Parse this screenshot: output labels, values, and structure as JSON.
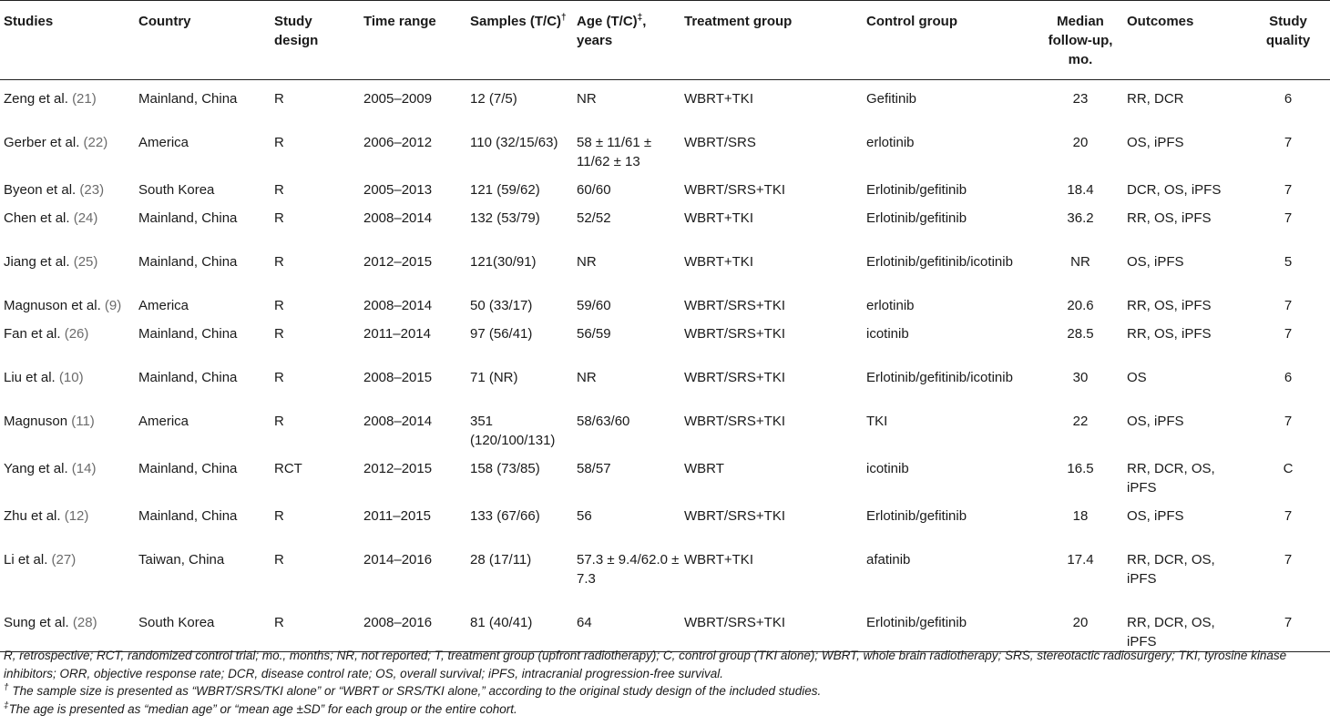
{
  "table": {
    "headers": {
      "studies": "Studies",
      "country": "Country",
      "design": "Study design",
      "time": "Time range",
      "samples": "Samples (T/C)",
      "samples_mark": "†",
      "age": "Age (T/C)",
      "age_mark": "‡",
      "age_unit": ", years",
      "treatment": "Treatment group",
      "control": "Control group",
      "followup": "Median follow-up, mo.",
      "outcomes": "Outcomes",
      "quality": "Study quality"
    },
    "rows": [
      {
        "author": "Zeng et al.",
        "ref": "(21)",
        "country": "Mainland, China",
        "design": "R",
        "time": "2005–2009",
        "samples": "12 (7/5)",
        "age": "NR",
        "treatment": "WBRT+TKI",
        "control": "Gefitinib",
        "followup": "23",
        "outcomes": "RR, DCR",
        "quality": "6"
      },
      {
        "author": "Gerber et al.",
        "ref": "(22)",
        "country": "America",
        "design": "R",
        "time": "2006–2012",
        "samples": "110 (32/15/63)",
        "age": "58 ± 11/61 ± 11/62 ± 13",
        "treatment": "WBRT/SRS",
        "control": "erlotinib",
        "followup": "20",
        "outcomes": "OS, iPFS",
        "quality": "7"
      },
      {
        "author": "Byeon et al.",
        "ref": "(23)",
        "country": "South Korea",
        "design": "R",
        "time": "2005–2013",
        "samples": "121 (59/62)",
        "age": "60/60",
        "treatment": "WBRT/SRS+TKI",
        "control": "Erlotinib/gefitinib",
        "followup": "18.4",
        "outcomes": "DCR, OS, iPFS",
        "quality": "7"
      },
      {
        "author": "Chen et al.",
        "ref": "(24)",
        "country": "Mainland, China",
        "design": "R",
        "time": "2008–2014",
        "samples": "132 (53/79)",
        "age": "52/52",
        "treatment": "WBRT+TKI",
        "control": "Erlotinib/gefitinib",
        "followup": "36.2",
        "outcomes": "RR, OS, iPFS",
        "quality": "7"
      },
      {
        "author": "Jiang et al.",
        "ref": "(25)",
        "country": "Mainland, China",
        "design": "R",
        "time": "2012–2015",
        "samples": "121(30/91)",
        "age": "NR",
        "treatment": "WBRT+TKI",
        "control": "Erlotinib/gefitinib/icotinib",
        "followup": "NR",
        "outcomes": "OS, iPFS",
        "quality": "5"
      },
      {
        "author": "Magnuson et al.",
        "ref": "(9)",
        "country": "America",
        "design": "R",
        "time": "2008–2014",
        "samples": "50 (33/17)",
        "age": "59/60",
        "treatment": "WBRT/SRS+TKI",
        "control": "erlotinib",
        "followup": "20.6",
        "outcomes": "RR, OS, iPFS",
        "quality": "7"
      },
      {
        "author": "Fan et al.",
        "ref": "(26)",
        "country": "Mainland, China",
        "design": "R",
        "time": "2011–2014",
        "samples": "97 (56/41)",
        "age": "56/59",
        "treatment": "WBRT/SRS+TKI",
        "control": "icotinib",
        "followup": "28.5",
        "outcomes": "RR, OS, iPFS",
        "quality": "7"
      },
      {
        "author": "Liu et al.",
        "ref": "(10)",
        "country": "Mainland, China",
        "design": "R",
        "time": "2008–2015",
        "samples": "71 (NR)",
        "age": "NR",
        "treatment": "WBRT/SRS+TKI",
        "control": "Erlotinib/gefitinib/icotinib",
        "followup": "30",
        "outcomes": "OS",
        "quality": "6"
      },
      {
        "author": "Magnuson",
        "ref": "(11)",
        "country": "America",
        "design": "R",
        "time": "2008–2014",
        "samples": "351 (120/100/131)",
        "age": "58/63/60",
        "treatment": "WBRT/SRS+TKI",
        "control": "TKI",
        "followup": "22",
        "outcomes": "OS, iPFS",
        "quality": "7"
      },
      {
        "author": "Yang et al.",
        "ref": "(14)",
        "country": "Mainland, China",
        "design": "RCT",
        "time": "2012–2015",
        "samples": "158 (73/85)",
        "age": "58/57",
        "treatment": "WBRT",
        "control": "icotinib",
        "followup": "16.5",
        "outcomes": "RR, DCR, OS, iPFS",
        "quality": "C"
      },
      {
        "author": "Zhu et al.",
        "ref": "(12)",
        "country": "Mainland, China",
        "design": "R",
        "time": "2011–2015",
        "samples": "133 (67/66)",
        "age": "56",
        "treatment": "WBRT/SRS+TKI",
        "control": "Erlotinib/gefitinib",
        "followup": "18",
        "outcomes": "OS, iPFS",
        "quality": "7"
      },
      {
        "author": "Li et al.",
        "ref": "(27)",
        "country": "Taiwan, China",
        "design": "R",
        "time": "2014–2016",
        "samples": "28 (17/11)",
        "age": "57.3 ± 9.4/62.0 ± 7.3",
        "treatment": "WBRT+TKI",
        "control": "afatinib",
        "followup": "17.4",
        "outcomes": "RR, DCR, OS, iPFS",
        "quality": "7"
      },
      {
        "author": "Sung et al.",
        "ref": "(28)",
        "country": "South Korea",
        "design": "R",
        "time": "2008–2016",
        "samples": "81 (40/41)",
        "age": "64",
        "treatment": "WBRT/SRS+TKI",
        "control": "Erlotinib/gefitinib",
        "followup": "20",
        "outcomes": "RR, DCR, OS, iPFS",
        "quality": "7"
      }
    ]
  },
  "footnotes": {
    "abbrev": "R, retrospective; RCT, randomized control trial; mo., months; NR, not reported; T, treatment group (upfront radiotherapy); C, control group (TKI alone); WBRT, whole brain radiotherapy; SRS, stereotactic radiosurgery; TKI, tyrosine kinase inhibitors; ORR, objective response rate; DCR, disease control rate; OS, overall survival; iPFS, intracranial progression-free survival.",
    "dagger_mark": "†",
    "dagger_text": "The sample size is presented as “WBRT/SRS/TKI alone” or “WBRT or SRS/TKI alone,” according to the original study design of the included studies.",
    "ddagger_mark": "‡",
    "ddagger_text": "The age is presented as “median age” or “mean age ±SD” for each group or the entire cohort."
  }
}
